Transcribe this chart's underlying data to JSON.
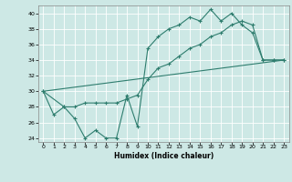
{
  "title": "",
  "xlabel": "Humidex (Indice chaleur)",
  "background_color": "#cde8e5",
  "line_color": "#2e7d6e",
  "grid_color": "#ffffff",
  "xlim": [
    -0.5,
    23.5
  ],
  "ylim": [
    23.5,
    41.0
  ],
  "yticks": [
    24,
    26,
    28,
    30,
    32,
    34,
    36,
    38,
    40
  ],
  "xticks": [
    0,
    1,
    2,
    3,
    4,
    5,
    6,
    7,
    8,
    9,
    10,
    11,
    12,
    13,
    14,
    15,
    16,
    17,
    18,
    19,
    20,
    21,
    22,
    23
  ],
  "series1_x": [
    0,
    1,
    2,
    3,
    4,
    5,
    6,
    7,
    8,
    9,
    10,
    11,
    12,
    13,
    14,
    15,
    16,
    17,
    18,
    19,
    20,
    21,
    22,
    23
  ],
  "series1_y": [
    30,
    27,
    28,
    26.5,
    24,
    25,
    24,
    24,
    29.5,
    25.5,
    35.5,
    37,
    38,
    38.5,
    39.5,
    39,
    40.5,
    39,
    40,
    38.5,
    37.5,
    34,
    34,
    34
  ],
  "series2_x": [
    0,
    2,
    3,
    4,
    5,
    6,
    7,
    8,
    9,
    10,
    11,
    12,
    13,
    14,
    15,
    16,
    17,
    18,
    19,
    20,
    21,
    22,
    23
  ],
  "series2_y": [
    30,
    28,
    28,
    28.5,
    28.5,
    28.5,
    28.5,
    29,
    29.5,
    31.5,
    33,
    33.5,
    34.5,
    35.5,
    36,
    37,
    37.5,
    38.5,
    39,
    38.5,
    34,
    34,
    34
  ],
  "series3_x": [
    0,
    23
  ],
  "series3_y": [
    30,
    34
  ]
}
